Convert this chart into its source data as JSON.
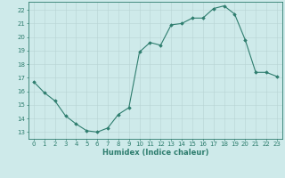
{
  "x": [
    0,
    1,
    2,
    3,
    4,
    5,
    6,
    7,
    8,
    9,
    10,
    11,
    12,
    13,
    14,
    15,
    16,
    17,
    18,
    19,
    20,
    21,
    22,
    23
  ],
  "y": [
    16.7,
    15.9,
    15.3,
    14.2,
    13.6,
    13.1,
    13.0,
    13.3,
    14.3,
    14.8,
    18.9,
    19.6,
    19.4,
    20.9,
    21.0,
    21.4,
    21.4,
    22.1,
    22.3,
    21.7,
    19.8,
    17.4,
    17.4,
    17.1
  ],
  "line_color": "#2e7d6e",
  "marker_color": "#2e7d6e",
  "bg_color": "#ceeaea",
  "grid_color": "#b8d4d4",
  "xlabel": "Humidex (Indice chaleur)",
  "xlim": [
    -0.5,
    23.5
  ],
  "ylim": [
    12.5,
    22.6
  ],
  "yticks": [
    13,
    14,
    15,
    16,
    17,
    18,
    19,
    20,
    21,
    22
  ],
  "xticks": [
    0,
    1,
    2,
    3,
    4,
    5,
    6,
    7,
    8,
    9,
    10,
    11,
    12,
    13,
    14,
    15,
    16,
    17,
    18,
    19,
    20,
    21,
    22,
    23
  ],
  "tick_color": "#2e7d6e",
  "spine_color": "#2e7d6e",
  "tick_fontsize": 5.0,
  "xlabel_fontsize": 6.0
}
